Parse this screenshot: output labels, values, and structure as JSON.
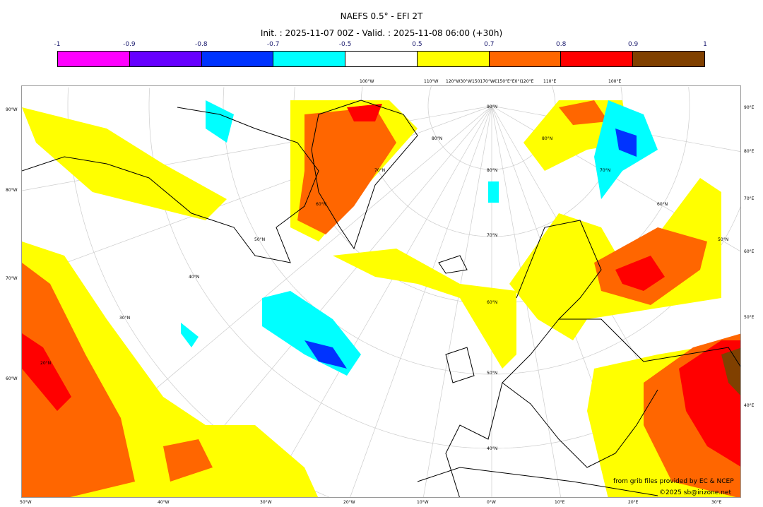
{
  "title": "NAEFS 0.5° - EFI 2T",
  "subtitle": "Init. : 2025-11-07 00Z - Valid. : 2025-11-08 06:00 (+30h)",
  "colorbar": {
    "ticks": [
      "-1",
      "-0.9",
      "-0.8",
      "-0.7",
      "-0.5",
      "0.5",
      "0.7",
      "0.8",
      "0.9",
      "1"
    ],
    "colors": [
      "#ff00ff",
      "#6600ff",
      "#0033ff",
      "#00ffff",
      "#ffffff",
      "#ffff00",
      "#ff6600",
      "#ff0000",
      "#804000"
    ]
  },
  "map": {
    "left_labels": [
      "90°W",
      "80°W",
      "70°W",
      "60°W"
    ],
    "right_labels": [
      "90°E",
      "80°E",
      "70°E",
      "60°E",
      "50°E",
      "40°E"
    ],
    "bottom_labels": [
      "50°W",
      "40°W",
      "30°W",
      "20°W",
      "10°W",
      "0°W",
      "10°E",
      "20°E",
      "30°E"
    ],
    "top_labels": [
      "100°W",
      "110°W",
      "120°W30°W150170°W€150°E°E0°I120°E",
      "110°E",
      "100°E"
    ],
    "lat_labels": [
      "90°N",
      "80°N",
      "80°N",
      "80°N",
      "70°N",
      "70°N",
      "70°N",
      "60°N",
      "60°N",
      "60°N",
      "50°N",
      "50°N",
      "50°N",
      "40°N",
      "40°N",
      "30°N",
      "20°N"
    ]
  },
  "credits": {
    "source": "from grib files provided by EC & NCEP",
    "copyright": "©2025 sb@irizone.net"
  }
}
